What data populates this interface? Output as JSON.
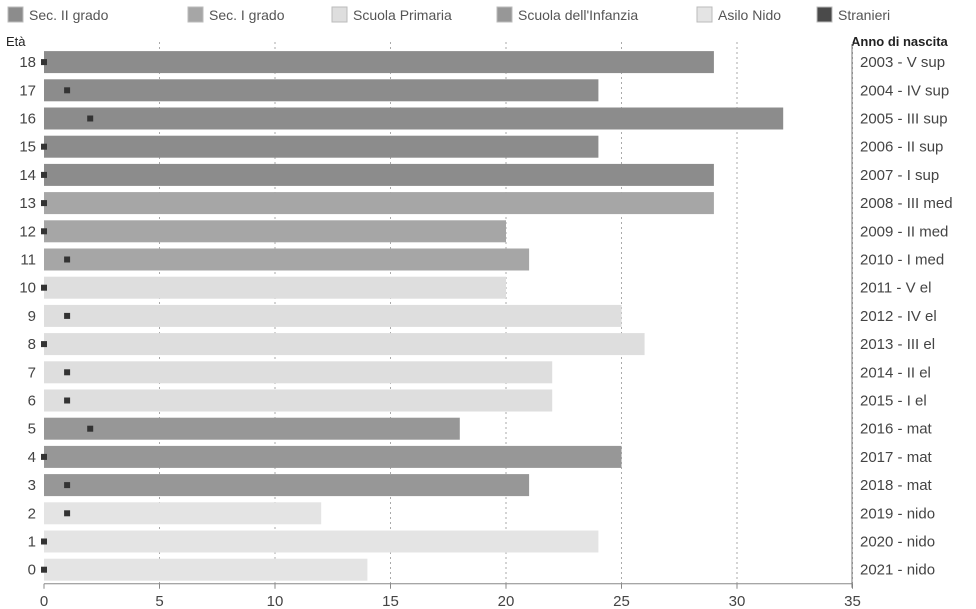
{
  "chart_data": {
    "type": "bar",
    "orientation": "horizontal",
    "y_axis_title": "Età",
    "right_axis_title": "Anno di nascita",
    "xlim": [
      0,
      35
    ],
    "x_ticks": [
      0,
      5,
      10,
      15,
      20,
      25,
      30,
      35
    ],
    "grid": "vertical dotted",
    "legend_position": "top",
    "legend": [
      {
        "name": "Sec. II grado",
        "color": "#8c8c8c"
      },
      {
        "name": "Sec. I grado",
        "color": "#a6a6a6"
      },
      {
        "name": "Scuola Primaria",
        "color": "#dedede"
      },
      {
        "name": "Scuola dell'Infanzia",
        "color": "#979797"
      },
      {
        "name": "Asilo Nido",
        "color": "#e4e4e4"
      },
      {
        "name": "Stranieri",
        "color": "#4a4a4a"
      }
    ],
    "rows": [
      {
        "age": "18",
        "birth": "2003 - V sup",
        "value": 29,
        "foreign": 0,
        "level": "Sec. II grado"
      },
      {
        "age": "17",
        "birth": "2004 - IV sup",
        "value": 24,
        "foreign": 1,
        "level": "Sec. II grado"
      },
      {
        "age": "16",
        "birth": "2005 - III sup",
        "value": 32,
        "foreign": 2,
        "level": "Sec. II grado"
      },
      {
        "age": "15",
        "birth": "2006 - II sup",
        "value": 24,
        "foreign": 0,
        "level": "Sec. II grado"
      },
      {
        "age": "14",
        "birth": "2007 - I sup",
        "value": 29,
        "foreign": 0,
        "level": "Sec. II grado"
      },
      {
        "age": "13",
        "birth": "2008 - III med",
        "value": 29,
        "foreign": 0,
        "level": "Sec. I grado"
      },
      {
        "age": "12",
        "birth": "2009 - II med",
        "value": 20,
        "foreign": 0,
        "level": "Sec. I grado"
      },
      {
        "age": "11",
        "birth": "2010 - I med",
        "value": 21,
        "foreign": 1,
        "level": "Sec. I grado"
      },
      {
        "age": "10",
        "birth": "2011 - V el",
        "value": 20,
        "foreign": 0,
        "level": "Scuola Primaria"
      },
      {
        "age": "9",
        "birth": "2012 - IV el",
        "value": 25,
        "foreign": 1,
        "level": "Scuola Primaria"
      },
      {
        "age": "8",
        "birth": "2013 - III el",
        "value": 26,
        "foreign": 0,
        "level": "Scuola Primaria"
      },
      {
        "age": "7",
        "birth": "2014 - II el",
        "value": 22,
        "foreign": 1,
        "level": "Scuola Primaria"
      },
      {
        "age": "6",
        "birth": "2015 - I el",
        "value": 22,
        "foreign": 1,
        "level": "Scuola Primaria"
      },
      {
        "age": "5",
        "birth": "2016 - mat",
        "value": 18,
        "foreign": 2,
        "level": "Scuola dell'Infanzia"
      },
      {
        "age": "4",
        "birth": "2017 - mat",
        "value": 25,
        "foreign": 0,
        "level": "Scuola dell'Infanzia"
      },
      {
        "age": "3",
        "birth": "2018 - mat",
        "value": 21,
        "foreign": 1,
        "level": "Scuola dell'Infanzia"
      },
      {
        "age": "2",
        "birth": "2019 - nido",
        "value": 12,
        "foreign": 1,
        "level": "Asilo Nido"
      },
      {
        "age": "1",
        "birth": "2020 - nido",
        "value": 24,
        "foreign": 0,
        "level": "Asilo Nido"
      },
      {
        "age": "0",
        "birth": "2021 - nido",
        "value": 14,
        "foreign": 0,
        "level": "Asilo Nido"
      }
    ]
  }
}
